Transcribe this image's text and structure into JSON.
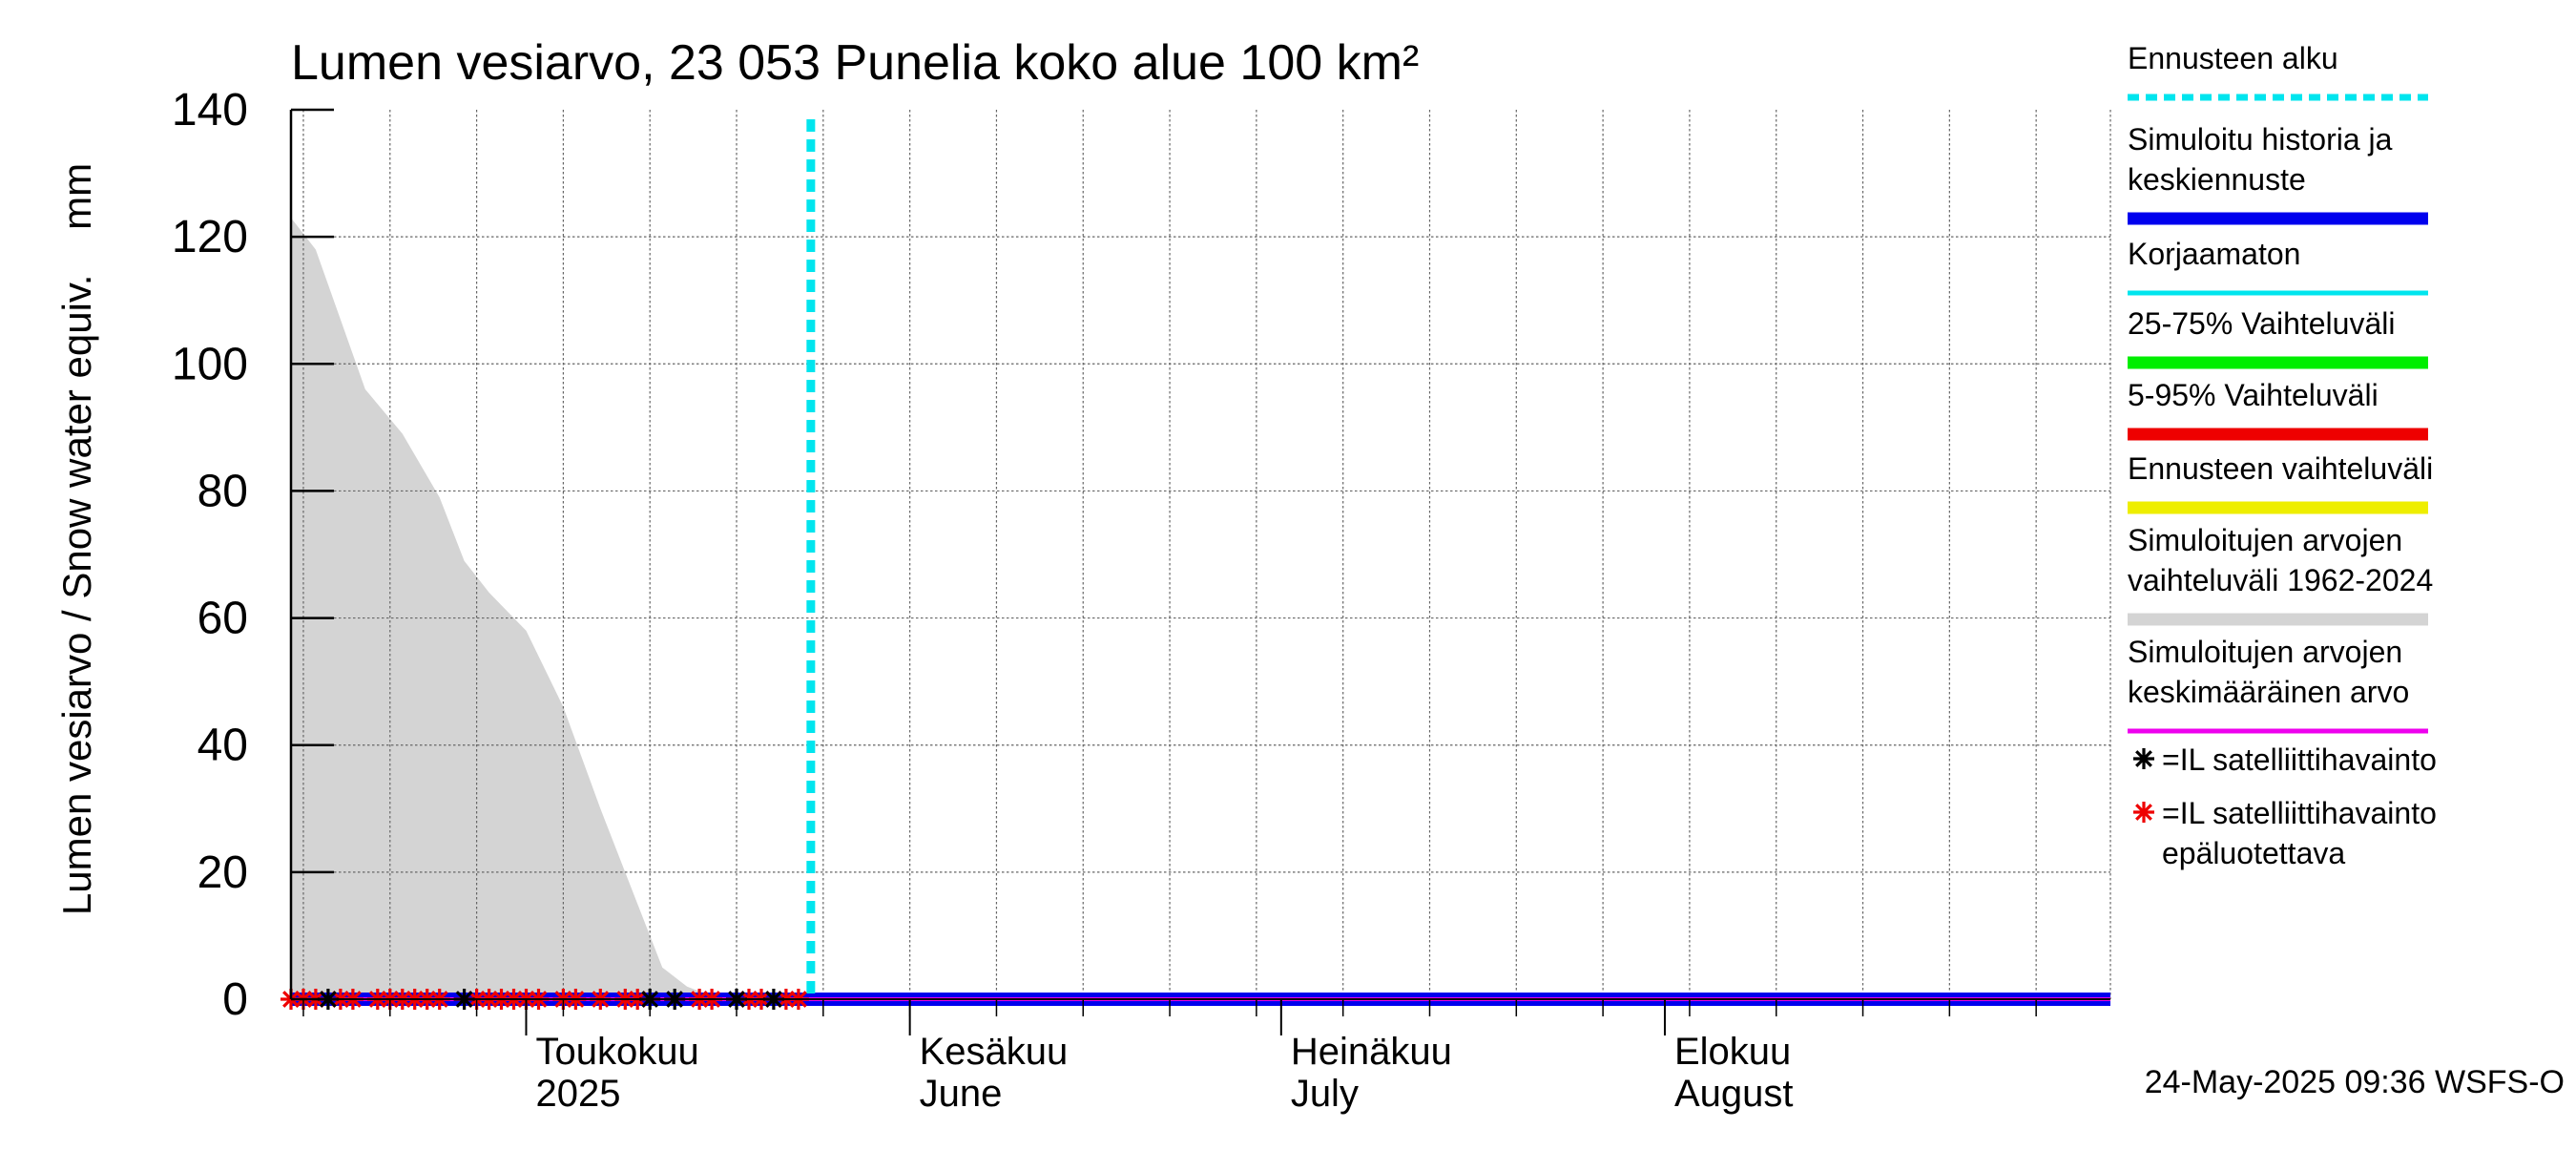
{
  "chart_data": {
    "type": "area",
    "title": "Lumen vesiarvo, 23 053 Punelia koko alue 100 km²",
    "ylabel": "Lumen vesiarvo / Snow water equiv.    mm",
    "ylim": [
      0,
      140
    ],
    "yticks": [
      0,
      20,
      40,
      60,
      80,
      100,
      120,
      140
    ],
    "x_range": [
      "2025-04-12",
      "2025-09-06"
    ],
    "forecast_start": "2025-05-24",
    "grid": true,
    "legend_position": "right",
    "month_labels": [
      {
        "line1": "Toukokuu",
        "line2": "2025",
        "date": "2025-05-01"
      },
      {
        "line1": "Kesäkuu",
        "line2": "June",
        "date": "2025-06-01"
      },
      {
        "line1": "Heinäkuu",
        "line2": "July",
        "date": "2025-07-01"
      },
      {
        "line1": "Elokuu",
        "line2": "August",
        "date": "2025-08-01"
      }
    ],
    "series": [
      {
        "name": "Simuloitujen arvojen vaihteluväli 1962-2024",
        "kind": "band",
        "color": "#d4d4d4",
        "points": [
          [
            "2025-04-12",
            123
          ],
          [
            "2025-04-14",
            118
          ],
          [
            "2025-04-16",
            107
          ],
          [
            "2025-04-18",
            96
          ],
          [
            "2025-04-21",
            89
          ],
          [
            "2025-04-24",
            79
          ],
          [
            "2025-04-26",
            69
          ],
          [
            "2025-04-28",
            64
          ],
          [
            "2025-05-01",
            58
          ],
          [
            "2025-05-04",
            46
          ],
          [
            "2025-05-07",
            30
          ],
          [
            "2025-05-10",
            15
          ],
          [
            "2025-05-12",
            5
          ],
          [
            "2025-05-14",
            2
          ],
          [
            "2025-05-16",
            0.5
          ],
          [
            "2025-05-18",
            0
          ]
        ]
      },
      {
        "name": "Simuloitu historia ja keskiennuste",
        "kind": "line",
        "color": "#0000ee",
        "points": [
          [
            "2025-04-12",
            0
          ],
          [
            "2025-09-06",
            0
          ]
        ]
      },
      {
        "name": "Simuloitujen arvojen keskimääräinen arvo",
        "kind": "line",
        "color": "#ee00ee",
        "points": [
          [
            "2025-04-12",
            0
          ],
          [
            "2025-09-06",
            0
          ]
        ]
      }
    ],
    "satellite_obs": {
      "reliable": [
        "2025-04-15",
        "2025-04-26",
        "2025-05-11",
        "2025-05-13",
        "2025-05-18",
        "2025-05-21"
      ],
      "unreliable": [
        "2025-04-12",
        "2025-04-13",
        "2025-04-14",
        "2025-04-16",
        "2025-04-17",
        "2025-04-19",
        "2025-04-20",
        "2025-04-21",
        "2025-04-22",
        "2025-04-23",
        "2025-04-24",
        "2025-04-27",
        "2025-04-28",
        "2025-04-29",
        "2025-04-30",
        "2025-05-01",
        "2025-05-02",
        "2025-05-04",
        "2025-05-05",
        "2025-05-07",
        "2025-05-09",
        "2025-05-10",
        "2025-05-15",
        "2025-05-16",
        "2025-05-19",
        "2025-05-20",
        "2025-05-22",
        "2025-05-23"
      ],
      "value": 0
    }
  },
  "legend": [
    {
      "label_lines": [
        "Ennusteen alku"
      ],
      "color": "#00e5ee",
      "style": "dotted"
    },
    {
      "label_lines": [
        "Simuloitu historia ja",
        "keskiennuste"
      ],
      "color": "#0000ee",
      "style": "thick"
    },
    {
      "label_lines": [
        "Korjaamaton"
      ],
      "color": "#00e5ee",
      "style": "thin"
    },
    {
      "label_lines": [
        "25-75% Vaihteluväli"
      ],
      "color": "#00ee00",
      "style": "thick"
    },
    {
      "label_lines": [
        "5-95% Vaihteluväli"
      ],
      "color": "#ee0000",
      "style": "thick"
    },
    {
      "label_lines": [
        "Ennusteen vaihteluväli"
      ],
      "color": "#eeee00",
      "style": "thick"
    },
    {
      "label_lines": [
        "Simuloitujen arvojen",
        "vaihteluväli 1962-2024"
      ],
      "color": "#d4d4d4",
      "style": "thick"
    },
    {
      "label_lines": [
        "Simuloitujen arvojen",
        "keskimääräinen arvo"
      ],
      "color": "#ee00ee",
      "style": "thin"
    },
    {
      "label_lines": [
        "=IL satelliittihavainto"
      ],
      "color": "#000000",
      "style": "marker"
    },
    {
      "label_lines": [
        "=IL satelliittihavainto",
        "epäluotettava"
      ],
      "color": "#ee0000",
      "style": "marker"
    }
  ],
  "footer": "24-May-2025 09:36 WSFS-O"
}
